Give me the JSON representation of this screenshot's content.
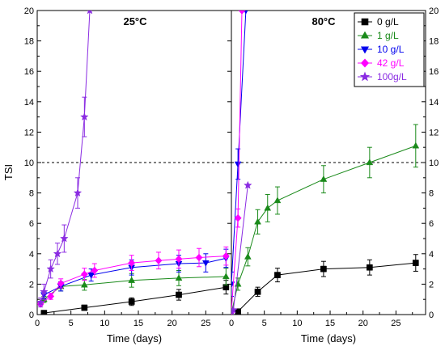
{
  "chart_data": {
    "type": "scatter",
    "ylabel": "TSI",
    "xlabel": "Time (days)",
    "ylim": [
      0,
      20
    ],
    "yticks": [
      0,
      2,
      4,
      6,
      8,
      10,
      12,
      14,
      16,
      18,
      20
    ],
    "xticks": [
      0,
      5,
      10,
      15,
      20,
      25
    ],
    "reference_line": {
      "y": 10,
      "style": "dotted"
    },
    "colors": {
      "0 g/L": "#000000",
      "1 g/L": "#1a8a1a",
      "10 g/L": "#0000ee",
      "42 g/L": "#ff00ff",
      "100g/L": "#8a2be2"
    },
    "markers": {
      "0 g/L": "square",
      "1 g/L": "triangle-up",
      "10 g/L": "triangle-down",
      "42 g/L": "diamond",
      "100g/L": "star"
    },
    "legend": {
      "placement": "top-right of right panel",
      "entries": [
        "0 g/L",
        "1 g/L",
        "10 g/L",
        "42 g/L",
        "100g/L"
      ]
    },
    "panels": [
      {
        "title": "25°C",
        "xlim": [
          0,
          28.8
        ],
        "series": [
          {
            "name": "0 g/L",
            "x": [
              1,
              7,
              14,
              21,
              28
            ],
            "y": [
              0.1,
              0.45,
              0.85,
              1.3,
              1.8
            ],
            "err": [
              0.1,
              0.15,
              0.25,
              0.35,
              0.45
            ]
          },
          {
            "name": "1 g/L",
            "x": [
              1,
              3.5,
              7,
              14,
              21,
              28
            ],
            "y": [
              1.0,
              1.85,
              1.95,
              2.25,
              2.4,
              2.5
            ],
            "err": [
              0.2,
              0.3,
              0.35,
              0.45,
              0.5,
              0.55
            ]
          },
          {
            "name": "10 g/L",
            "x": [
              1,
              3.5,
              8,
              14,
              21,
              25,
              28
            ],
            "y": [
              1.3,
              1.85,
              2.6,
              3.1,
              3.35,
              3.4,
              3.7
            ],
            "err": [
              0.25,
              0.3,
              0.4,
              0.5,
              0.55,
              0.6,
              0.6
            ]
          },
          {
            "name": "42 g/L",
            "x": [
              0.5,
              2,
              3.5,
              7,
              8.5,
              14,
              18,
              21,
              24,
              28
            ],
            "y": [
              0.7,
              1.2,
              2.05,
              2.65,
              2.9,
              3.4,
              3.55,
              3.65,
              3.75,
              3.85
            ],
            "err": [
              0.1,
              0.2,
              0.3,
              0.4,
              0.45,
              0.5,
              0.55,
              0.6,
              0.6,
              0.6
            ]
          },
          {
            "name": "100g/L",
            "x": [
              0.5,
              1,
              2,
              3,
              4,
              6,
              7,
              7.8
            ],
            "y": [
              0.8,
              1.5,
              3.0,
              4.0,
              5.0,
              8.0,
              13.0,
              20
            ],
            "err": [
              0.3,
              0.5,
              0.6,
              0.7,
              0.9,
              1.0,
              1.3,
              0
            ]
          }
        ]
      },
      {
        "title": "80°C",
        "xlim": [
          0,
          29.5
        ],
        "series": [
          {
            "name": "0 g/L",
            "x": [
              1,
              4,
              7,
              14,
              21,
              28
            ],
            "y": [
              0.2,
              1.5,
              2.6,
              3.0,
              3.1,
              3.4
            ],
            "err": [
              0.1,
              0.3,
              0.45,
              0.5,
              0.5,
              0.55
            ]
          },
          {
            "name": "1 g/L",
            "x": [
              0,
              1,
              2.5,
              4,
              5.5,
              7,
              14,
              21,
              28
            ],
            "y": [
              0.1,
              2.0,
              3.8,
              6.1,
              7.0,
              7.5,
              8.9,
              10.0,
              11.1
            ],
            "err": [
              0,
              0.4,
              0.6,
              0.8,
              0.9,
              0.9,
              0.9,
              1.0,
              1.4
            ]
          },
          {
            "name": "10 g/L",
            "x": [
              0,
              1,
              2.2
            ],
            "y": [
              2.0,
              9.9,
              20
            ],
            "err": [
              0.8,
              1.0,
              0
            ]
          },
          {
            "name": "42 g/L",
            "x": [
              0,
              1,
              1.6
            ],
            "y": [
              0.2,
              6.35,
              20
            ],
            "err": [
              0.1,
              0.6,
              0
            ]
          },
          {
            "name": "100g/L",
            "x": [
              0,
              0.3,
              2.5
            ],
            "y": [
              0.2,
              0.3,
              8.5
            ],
            "err": [
              0,
              0,
              0
            ]
          }
        ]
      }
    ]
  }
}
